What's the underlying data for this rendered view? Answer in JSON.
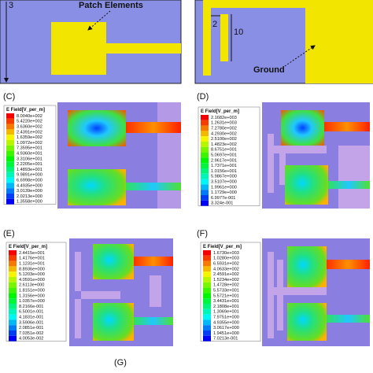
{
  "top_left": {
    "dimension": "3",
    "annotation": "Patch Elements"
  },
  "top_right": {
    "dimension_a": "2",
    "dimension_b": "10",
    "annotation": "Ground"
  },
  "panels": [
    {
      "label": "(C)",
      "legend_title": "E Field[V_per_m]",
      "levels": [
        "8.0040e+002",
        "5.4220e+002",
        "3.6360e+002",
        "2.4391e+002",
        "1.6359e+002",
        "1.0972e+002",
        "7.3595e+001",
        "4.9360e+001",
        "3.3106e+001",
        "2.2205e+001",
        "1.4893e+001",
        "9.9891e+000",
        "6.6998e+000",
        "4.4935e+000",
        "3.0139e+000",
        "2.0213e+000",
        "1.3558e+000"
      ]
    },
    {
      "label": "(D)",
      "legend_title": "E Field[V_per_m]",
      "levels": [
        "2.1682e+003",
        "1.2631e+003",
        "7.2780e+002",
        "4.2930e+002",
        "2.5100e+002",
        "1.4823e+002",
        "8.6751e+001",
        "5.0697e+001",
        "2.9617e+001",
        "1.7371e+001",
        "1.0156e+001",
        "5.9867e+000",
        "3.5107e+000",
        "1.9961e+000",
        "1.1729e+000",
        "6.9977e-001",
        "3.324e-001"
      ]
    },
    {
      "label": "(E)",
      "legend_title": "E Field[V_per_m]",
      "levels": [
        "2.4415e+001",
        "1.4176e+001",
        "1.1231e+001",
        "8.8936e+000",
        "5.1203e+000",
        "4.0591e+000",
        "2.6113e+000",
        "1.8151e+000",
        "1.3156e+000",
        "1.0357e+000",
        "8.2166e-001",
        "6.5001e-001",
        "4.1831e-001",
        "3.5906e-001",
        "2.0851e-001",
        "7.0351e-002",
        "4.0053e-002"
      ]
    },
    {
      "label": "(F)",
      "legend_title": "E Field[V_per_m]",
      "levels": [
        "1.6730e+003",
        "1.0280e+003",
        "6.5931e+002",
        "4.0633e+002",
        "2.4591e+002",
        "1.5234e+002",
        "1.4728e+002",
        "5.5733e+001",
        "5.5721e+001",
        "3.4431e+001",
        "2.1808e+001",
        "1.3069e+001",
        "7.9751e+000",
        "4.9355e+000",
        "3.0617e+000",
        "1.9451e+000",
        "7.0213e-001"
      ]
    }
  ],
  "footer": "(G)"
}
